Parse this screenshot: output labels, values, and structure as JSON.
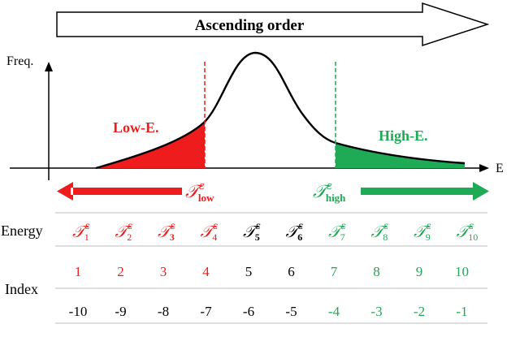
{
  "banner": {
    "label": "Ascending order"
  },
  "axes": {
    "y_label": "Freq.",
    "x_label": "E"
  },
  "regions": {
    "low": {
      "label": "Low-E.",
      "symbol": "𝒯",
      "sup": "ε",
      "sub": "low",
      "color": "#ee1c1c"
    },
    "high": {
      "label": "High-E.",
      "symbol": "𝒯",
      "sup": "ε",
      "sub": "high",
      "color": "#1faa55"
    }
  },
  "table": {
    "energy_label": "Energy",
    "index_label": "Index",
    "symbol": "𝒯",
    "sup": "ε",
    "columns": [
      {
        "sub": "1",
        "index": "1",
        "neg": "-10",
        "group": "low"
      },
      {
        "sub": "2",
        "index": "2",
        "neg": "-9",
        "group": "low"
      },
      {
        "sub": "3",
        "index": "3",
        "neg": "-8",
        "group": "low"
      },
      {
        "sub": "4",
        "index": "4",
        "neg": "-7",
        "group": "low"
      },
      {
        "sub": "5",
        "index": "5",
        "neg": "-6",
        "group": "mid"
      },
      {
        "sub": "6",
        "index": "6",
        "neg": "-5",
        "group": "mid"
      },
      {
        "sub": "7",
        "index": "7",
        "neg": "-4",
        "group": "high"
      },
      {
        "sub": "8",
        "index": "8",
        "neg": "-3",
        "group": "high"
      },
      {
        "sub": "9",
        "index": "9",
        "neg": "-2",
        "group": "high"
      },
      {
        "sub": "10",
        "index": "10",
        "neg": "-1",
        "group": "high"
      }
    ]
  },
  "colors": {
    "low": "#ee1c1c",
    "high": "#1faa55",
    "mid": "#000000",
    "rule": "#bdbdbd"
  }
}
